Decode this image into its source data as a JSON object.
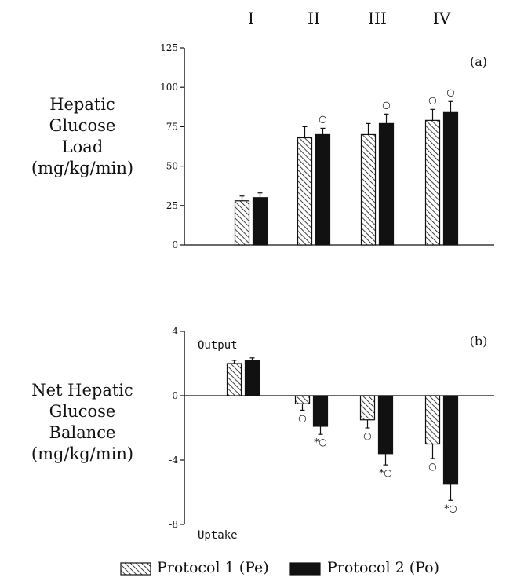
{
  "chart_data": [
    {
      "type": "bar",
      "panel_label": "(a)",
      "categories": [
        "I",
        "II",
        "III",
        "IV"
      ],
      "ylabel_lines": [
        "Hepatic",
        "Glucose",
        "Load",
        "(mg/kg/min)"
      ],
      "ylim": [
        0,
        125
      ],
      "yticks": [
        "0",
        "25",
        "50",
        "75",
        "100",
        "125"
      ],
      "series": [
        {
          "name": "Protocol 1 (Pe)",
          "values": [
            28,
            68,
            70,
            79
          ],
          "errors": [
            3,
            7,
            7,
            7
          ],
          "marks": [
            "",
            "",
            "",
            "○"
          ]
        },
        {
          "name": "Protocol 2 (Po)",
          "values": [
            30,
            70,
            77,
            84
          ],
          "errors": [
            3,
            4,
            6,
            7
          ],
          "marks": [
            "",
            "○",
            "○",
            "○"
          ]
        }
      ]
    },
    {
      "type": "bar",
      "panel_label": "(b)",
      "categories": [
        "I",
        "II",
        "III",
        "IV"
      ],
      "ylabel_lines": [
        "Net Hepatic",
        "Glucose",
        "Balance",
        "(mg/kg/min)"
      ],
      "ylim": [
        -8,
        4
      ],
      "yticks": [
        "4",
        "0",
        "-4",
        "-8"
      ],
      "top_annotation": "Output",
      "bottom_annotation": "Uptake",
      "series": [
        {
          "name": "Protocol 1 (Pe)",
          "values": [
            2.0,
            -0.5,
            -1.5,
            -3.0
          ],
          "errors": [
            0.2,
            0.4,
            0.5,
            0.9
          ],
          "marks": [
            "",
            "○",
            "○",
            "○"
          ]
        },
        {
          "name": "Protocol 2 (Po)",
          "values": [
            2.2,
            -1.9,
            -3.6,
            -5.5
          ],
          "errors": [
            0.15,
            0.5,
            0.7,
            1.0
          ],
          "marks": [
            "",
            "*○",
            "*○",
            "*○"
          ]
        }
      ]
    }
  ],
  "legend": {
    "items": [
      {
        "label": "Protocol 1 (Pe)",
        "pattern": "hatched"
      },
      {
        "label": "Protocol 2 (Po)",
        "pattern": "solid"
      }
    ]
  }
}
